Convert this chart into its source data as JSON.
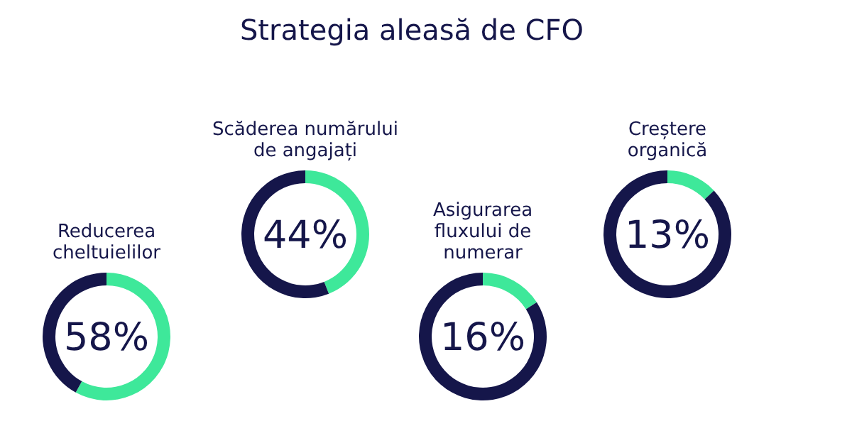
{
  "chart_data": [
    {
      "type": "donut",
      "title": "Reducerea cheltuielilor",
      "annotations": [
        "Strategia aleasă de CFO",
        "58%"
      ],
      "categories": [
        null,
        null
      ],
      "values": [
        58,
        42
      ],
      "colors": [
        "#3ee89a",
        "#15164a"
      ]
    },
    {
      "type": "donut",
      "title": "Scăderea numărului de angajați",
      "annotations": [
        "44%"
      ],
      "categories": [
        null,
        null
      ],
      "values": [
        44,
        56
      ],
      "colors": [
        "#3ee89a",
        "#15164a"
      ]
    },
    {
      "type": "donut",
      "title": "Asigurarea fluxului de numerar",
      "annotations": [
        "16%"
      ],
      "categories": [
        null,
        null
      ],
      "values": [
        16,
        84
      ],
      "colors": [
        "#3ee89a",
        "#15164a"
      ]
    },
    {
      "type": "donut",
      "title": "Creștere organică",
      "annotations": [
        "13%"
      ],
      "categories": [
        null,
        null
      ],
      "values": [
        13,
        87
      ],
      "colors": [
        "#3ee89a",
        "#15164a"
      ]
    }
  ]
}
